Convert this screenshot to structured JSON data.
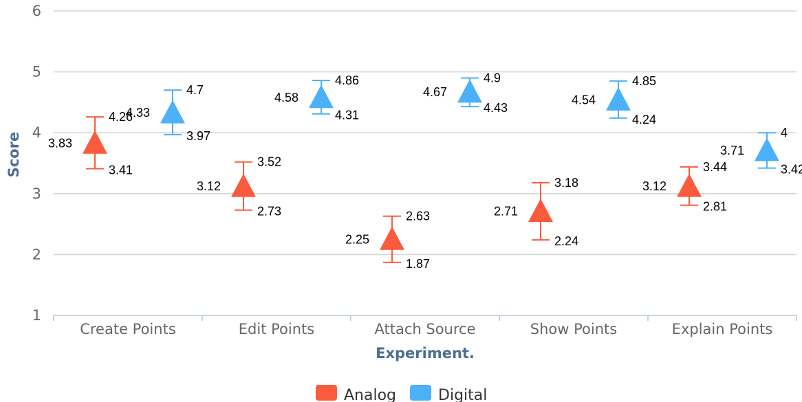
{
  "chart_data": {
    "type": "scatter",
    "title": "",
    "xlabel": "Experiment.",
    "ylabel": "Score",
    "categories": [
      "Create Points",
      "Edit Points",
      "Attach Source",
      "Show Points",
      "Explain Points"
    ],
    "ylim": [
      1,
      6
    ],
    "yticks": [
      "1",
      "2",
      "3",
      "4",
      "5",
      "6"
    ],
    "grid": true,
    "legend_position": "bottom-center",
    "series": [
      {
        "name": "Analog",
        "color": "#fa5b3c",
        "marker": "triangle",
        "values": [
          3.83,
          3.12,
          2.25,
          2.71,
          3.12
        ],
        "error_high": [
          4.26,
          3.52,
          2.63,
          3.18,
          3.44
        ],
        "error_low": [
          3.41,
          2.73,
          1.87,
          2.24,
          2.81
        ]
      },
      {
        "name": "Digital",
        "color": "#4db1f9",
        "marker": "triangle",
        "values": [
          4.33,
          4.58,
          4.67,
          4.54,
          3.71
        ],
        "error_high": [
          4.7,
          4.86,
          4.9,
          4.85,
          4
        ],
        "error_low": [
          3.97,
          4.31,
          4.43,
          4.24,
          3.42
        ]
      }
    ]
  }
}
